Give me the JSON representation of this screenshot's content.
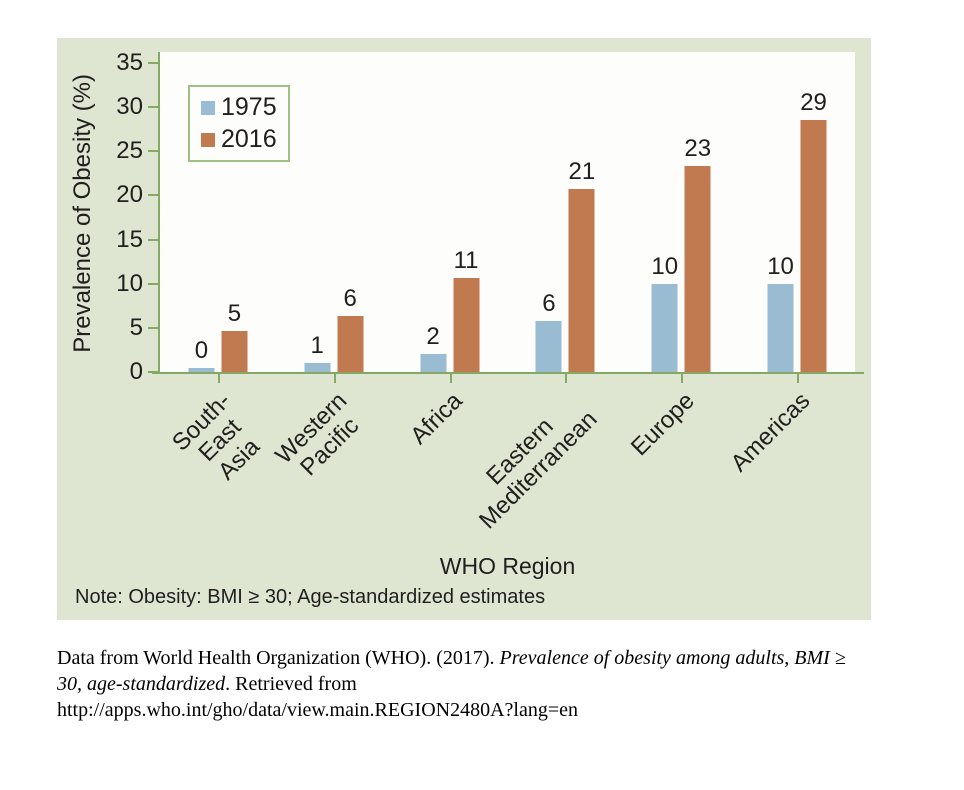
{
  "figure": {
    "note": "Note: Obesity: BMI ≥ 30; Age-standardized estimates"
  },
  "chart_data": {
    "type": "bar",
    "title": "",
    "xlabel": "WHO Region",
    "ylabel": "Prevalence of Obesity (%)",
    "ylim": [
      0,
      35
    ],
    "yticks": [
      0,
      5,
      10,
      15,
      20,
      25,
      30,
      35
    ],
    "grid": false,
    "legend_position": "top-left",
    "categories": [
      "South-East Asia",
      "Western Pacific",
      "Africa",
      "Eastern\nMediterranean",
      "Europe",
      "Americas"
    ],
    "series": [
      {
        "name": "1975",
        "color": "#9abcd2",
        "values": [
          0,
          1,
          2,
          6,
          10,
          10
        ],
        "drawn_heights": [
          0.4,
          1,
          2,
          5.8,
          10,
          10
        ]
      },
      {
        "name": "2016",
        "color": "#c1794f",
        "values": [
          5,
          6,
          11,
          21,
          23,
          29
        ],
        "drawn_heights": [
          4.7,
          6.4,
          10.6,
          20.7,
          23.3,
          28.5
        ]
      }
    ]
  },
  "colors": {
    "panel_bg": "#dee5d1",
    "plot_bg": "#fdfdfb",
    "axis": "#84a964",
    "legend_border": "#a0bf83",
    "text": "#211e1e",
    "series_1975": "#9abcd2",
    "series_2016": "#c1794f"
  },
  "citation": {
    "lines": [
      {
        "segments": [
          {
            "text": "Data from World Health Organization (WHO). (2017). ",
            "italic": false
          },
          {
            "text": "Prevalence of obesity among adults, BMI ≥",
            "italic": true
          }
        ]
      },
      {
        "segments": [
          {
            "text": "30, age-standardized",
            "italic": true
          },
          {
            "text": ". Retrieved from",
            "italic": false
          }
        ]
      },
      {
        "segments": [
          {
            "text": "http://apps.who.int/gho/data/view.main.REGION2480A?lang=en",
            "italic": false
          }
        ]
      }
    ]
  }
}
